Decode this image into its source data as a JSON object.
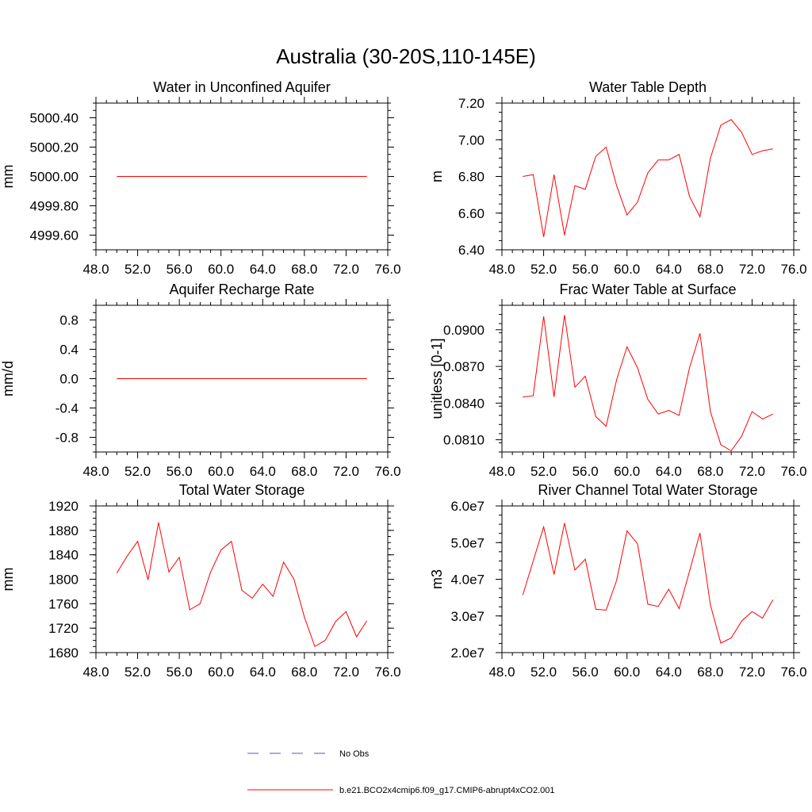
{
  "figure": {
    "title": "Australia (30-20S,110-145E)"
  },
  "legend": {
    "entries": [
      {
        "label": "No Obs",
        "color": "#5a5aa0",
        "style": "dashed"
      },
      {
        "label": "b.e21.BCO2x4cmip6.f09_g17.CMIP6-abrupt4xCO2.001",
        "color": "#ff0000",
        "style": "solid"
      }
    ]
  },
  "chart_data": [
    {
      "type": "line",
      "title": "Water in Unconfined Aquifer",
      "xlabel": "",
      "ylabel": "mm",
      "xlim": [
        48,
        76
      ],
      "ylim": [
        4999.5,
        5000.5
      ],
      "xticks": [
        "48.0",
        "52.0",
        "56.0",
        "60.0",
        "64.0",
        "68.0",
        "72.0",
        "76.0"
      ],
      "xtick_values": [
        48,
        52,
        56,
        60,
        64,
        68,
        72,
        76
      ],
      "yticks": [
        "4999.60",
        "4999.80",
        "5000.00",
        "5000.20",
        "5000.40"
      ],
      "ytick_values": [
        4999.6,
        4999.8,
        5000.0,
        5000.2,
        5000.4
      ],
      "series": [
        {
          "color": "#ff0000",
          "x": [
            50,
            51,
            52,
            53,
            54,
            55,
            56,
            57,
            58,
            59,
            60,
            61,
            62,
            63,
            64,
            65,
            66,
            67,
            68,
            69,
            70,
            71,
            72,
            73,
            74
          ],
          "values": [
            5000,
            5000,
            5000,
            5000,
            5000,
            5000,
            5000,
            5000,
            5000,
            5000,
            5000,
            5000,
            5000,
            5000,
            5000,
            5000,
            5000,
            5000,
            5000,
            5000,
            5000,
            5000,
            5000,
            5000,
            5000
          ]
        }
      ]
    },
    {
      "type": "line",
      "title": "Water Table Depth",
      "xlabel": "",
      "ylabel": "m",
      "xlim": [
        48,
        76
      ],
      "ylim": [
        6.4,
        7.2
      ],
      "xticks": [
        "48.0",
        "52.0",
        "56.0",
        "60.0",
        "64.0",
        "68.0",
        "72.0",
        "76.0"
      ],
      "xtick_values": [
        48,
        52,
        56,
        60,
        64,
        68,
        72,
        76
      ],
      "yticks": [
        "6.40",
        "6.60",
        "6.80",
        "7.00",
        "7.20"
      ],
      "ytick_values": [
        6.4,
        6.6,
        6.8,
        7.0,
        7.2
      ],
      "series": [
        {
          "color": "#ff0000",
          "x": [
            50,
            51,
            52,
            53,
            54,
            55,
            56,
            57,
            58,
            59,
            60,
            61,
            62,
            63,
            64,
            65,
            66,
            67,
            68,
            69,
            70,
            71,
            72,
            73,
            74
          ],
          "values": [
            6.8,
            6.81,
            6.47,
            6.81,
            6.48,
            6.75,
            6.73,
            6.91,
            6.96,
            6.75,
            6.59,
            6.66,
            6.82,
            6.89,
            6.89,
            6.92,
            6.69,
            6.58,
            6.9,
            7.08,
            7.11,
            7.04,
            6.92,
            6.94,
            6.95
          ]
        }
      ]
    },
    {
      "type": "line",
      "title": "Aquifer Recharge Rate",
      "xlabel": "",
      "ylabel": "mm/d",
      "xlim": [
        48,
        76
      ],
      "ylim": [
        -1.0,
        1.0
      ],
      "xticks": [
        "48.0",
        "52.0",
        "56.0",
        "60.0",
        "64.0",
        "68.0",
        "72.0",
        "76.0"
      ],
      "xtick_values": [
        48,
        52,
        56,
        60,
        64,
        68,
        72,
        76
      ],
      "yticks": [
        "-0.8",
        "-0.4",
        "0.0",
        "0.4",
        "0.8"
      ],
      "ytick_values": [
        -0.8,
        -0.4,
        0.0,
        0.4,
        0.8
      ],
      "series": [
        {
          "color": "#ff0000",
          "x": [
            50,
            51,
            52,
            53,
            54,
            55,
            56,
            57,
            58,
            59,
            60,
            61,
            62,
            63,
            64,
            65,
            66,
            67,
            68,
            69,
            70,
            71,
            72,
            73,
            74
          ],
          "values": [
            0,
            0,
            0,
            0,
            0,
            0,
            0,
            0,
            0,
            0,
            0,
            0,
            0,
            0,
            0,
            0,
            0,
            0,
            0,
            0,
            0,
            0,
            0,
            0,
            0
          ]
        }
      ]
    },
    {
      "type": "line",
      "title": "Frac Water Table at Surface",
      "xlabel": "",
      "ylabel": "unitless [0-1]",
      "xlim": [
        48,
        76
      ],
      "ylim": [
        0.08,
        0.092
      ],
      "xticks": [
        "48.0",
        "52.0",
        "56.0",
        "60.0",
        "64.0",
        "68.0",
        "72.0",
        "76.0"
      ],
      "xtick_values": [
        48,
        52,
        56,
        60,
        64,
        68,
        72,
        76
      ],
      "yticks": [
        "0.0810",
        "0.0840",
        "0.0870",
        "0.0900"
      ],
      "ytick_values": [
        0.081,
        0.084,
        0.087,
        0.09
      ],
      "series": [
        {
          "color": "#ff0000",
          "x": [
            50,
            51,
            52,
            53,
            54,
            55,
            56,
            57,
            58,
            59,
            60,
            61,
            62,
            63,
            64,
            65,
            66,
            67,
            68,
            69,
            70,
            71,
            72,
            73,
            74
          ],
          "values": [
            0.0845,
            0.0846,
            0.0911,
            0.0845,
            0.0912,
            0.0853,
            0.0862,
            0.0829,
            0.0821,
            0.0859,
            0.0886,
            0.0869,
            0.0843,
            0.0831,
            0.0834,
            0.083,
            0.0869,
            0.0897,
            0.0833,
            0.0806,
            0.0801,
            0.0813,
            0.0833,
            0.0827,
            0.0831
          ]
        }
      ]
    },
    {
      "type": "line",
      "title": "Total Water Storage",
      "xlabel": "",
      "ylabel": "mm",
      "xlim": [
        48,
        76
      ],
      "ylim": [
        1680,
        1920
      ],
      "xticks": [
        "48.0",
        "52.0",
        "56.0",
        "60.0",
        "64.0",
        "68.0",
        "72.0",
        "76.0"
      ],
      "xtick_values": [
        48,
        52,
        56,
        60,
        64,
        68,
        72,
        76
      ],
      "yticks": [
        "1680",
        "1720",
        "1760",
        "1800",
        "1840",
        "1880",
        "1920"
      ],
      "ytick_values": [
        1680,
        1720,
        1760,
        1800,
        1840,
        1880,
        1920
      ],
      "series": [
        {
          "color": "#ff0000",
          "x": [
            50,
            51,
            52,
            53,
            54,
            55,
            56,
            57,
            58,
            59,
            60,
            61,
            62,
            63,
            64,
            65,
            66,
            67,
            68,
            69,
            70,
            71,
            72,
            73,
            74
          ],
          "values": [
            1810,
            1838,
            1862,
            1799,
            1893,
            1812,
            1836,
            1750,
            1760,
            1812,
            1848,
            1862,
            1782,
            1769,
            1792,
            1772,
            1828,
            1800,
            1738,
            1690,
            1700,
            1731,
            1747,
            1706,
            1732
          ]
        }
      ]
    },
    {
      "type": "line",
      "title": "River Channel Total Water Storage",
      "xlabel": "",
      "ylabel": "m3",
      "xlim": [
        48,
        76
      ],
      "ylim": [
        20000000.0,
        60000000.0
      ],
      "xticks": [
        "48.0",
        "52.0",
        "56.0",
        "60.0",
        "64.0",
        "68.0",
        "72.0",
        "76.0"
      ],
      "xtick_values": [
        48,
        52,
        56,
        60,
        64,
        68,
        72,
        76
      ],
      "yticks": [
        "2.0e7",
        "3.0e7",
        "4.0e7",
        "5.0e7",
        "6.0e7"
      ],
      "ytick_values": [
        20000000.0,
        30000000.0,
        40000000.0,
        50000000.0,
        60000000.0
      ],
      "series": [
        {
          "color": "#ff0000",
          "x": [
            50,
            51,
            52,
            53,
            54,
            55,
            56,
            57,
            58,
            59,
            60,
            61,
            62,
            63,
            64,
            65,
            66,
            67,
            68,
            69,
            70,
            71,
            72,
            73,
            74
          ],
          "values": [
            35700000.0,
            45000000.0,
            54300000.0,
            41300000.0,
            55300000.0,
            42500000.0,
            45500000.0,
            31800000.0,
            31600000.0,
            39700000.0,
            53200000.0,
            49700000.0,
            33200000.0,
            32600000.0,
            37300000.0,
            32000000.0,
            42200000.0,
            52600000.0,
            33000000.0,
            22600000.0,
            24000000.0,
            28600000.0,
            31200000.0,
            29400000.0,
            34400000.0
          ]
        }
      ]
    }
  ]
}
